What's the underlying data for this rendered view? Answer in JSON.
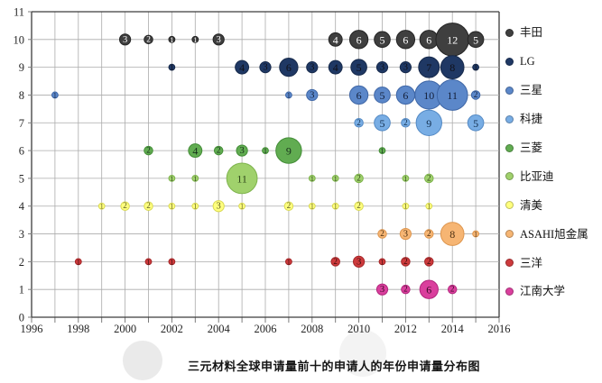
{
  "chart_data": {
    "type": "bubble",
    "title": "三元材料全球申请量前十的申请人的年份申请量分布图",
    "legend_position": "right",
    "grid": {
      "line_color": "#ababab",
      "border_color": "#3c3c3c"
    },
    "x_axis": {
      "min": 1996,
      "max": 2016,
      "grid_step": 1,
      "label_step": 2,
      "tick_labels": [
        "1996",
        "1998",
        "2000",
        "2002",
        "2004",
        "2006",
        "2008",
        "2010",
        "2012",
        "2014",
        "2016"
      ]
    },
    "y_axis": {
      "min": 0,
      "max": 11,
      "tick_labels": [
        "0",
        "1",
        "2",
        "3",
        "4",
        "5",
        "6",
        "7",
        "8",
        "9",
        "10",
        "11"
      ]
    },
    "series": [
      {
        "name": "丰田",
        "row": 10,
        "color": "#3f3f3f",
        "stroke": "#242424",
        "text_color": "#ffffff",
        "points": [
          [
            2000,
            3
          ],
          [
            2001,
            2
          ],
          [
            2002,
            1
          ],
          [
            2003,
            1
          ],
          [
            2004,
            3
          ],
          [
            2009,
            4
          ],
          [
            2010,
            6
          ],
          [
            2011,
            5
          ],
          [
            2012,
            6
          ],
          [
            2013,
            6
          ],
          [
            2014,
            12
          ],
          [
            2015,
            5
          ]
        ]
      },
      {
        "name": "LG",
        "row": 9,
        "color": "#1f3864",
        "stroke": "#16294a",
        "text_color": "#101018",
        "points": [
          [
            2002,
            1
          ],
          [
            2005,
            4
          ],
          [
            2006,
            3
          ],
          [
            2007,
            6
          ],
          [
            2008,
            3
          ],
          [
            2009,
            4
          ],
          [
            2010,
            5
          ],
          [
            2011,
            3
          ],
          [
            2012,
            3
          ],
          [
            2013,
            7
          ],
          [
            2014,
            8
          ],
          [
            2015,
            1
          ]
        ]
      },
      {
        "name": "三星",
        "row": 8,
        "color": "#5b87c9",
        "stroke": "#3e66a6",
        "text_color": "#14203a",
        "points": [
          [
            1997,
            1
          ],
          [
            2007,
            1
          ],
          [
            2008,
            3
          ],
          [
            2010,
            6
          ],
          [
            2011,
            5
          ],
          [
            2012,
            6
          ],
          [
            2013,
            10
          ],
          [
            2014,
            11
          ],
          [
            2015,
            2
          ]
        ]
      },
      {
        "name": "科捷",
        "row": 7,
        "color": "#78ade4",
        "stroke": "#5389c4",
        "text_color": "#14304f",
        "points": [
          [
            2010,
            2
          ],
          [
            2011,
            5
          ],
          [
            2012,
            2
          ],
          [
            2013,
            9
          ],
          [
            2015,
            5
          ]
        ]
      },
      {
        "name": "三菱",
        "row": 6,
        "color": "#61ac51",
        "stroke": "#428c36",
        "text_color": "#17301a",
        "points": [
          [
            2001,
            2
          ],
          [
            2003,
            4
          ],
          [
            2004,
            2
          ],
          [
            2005,
            3
          ],
          [
            2006,
            1
          ],
          [
            2007,
            9
          ],
          [
            2011,
            1
          ]
        ]
      },
      {
        "name": "比亚迪",
        "row": 5,
        "color": "#a0d16c",
        "stroke": "#7eb34d",
        "text_color": "#2e4519",
        "points": [
          [
            2002,
            1
          ],
          [
            2003,
            1
          ],
          [
            2005,
            11
          ],
          [
            2008,
            1
          ],
          [
            2009,
            1
          ],
          [
            2010,
            2
          ],
          [
            2012,
            1
          ],
          [
            2013,
            2
          ]
        ]
      },
      {
        "name": "清美",
        "row": 4,
        "color": "#ffff7d",
        "stroke": "#d9d955",
        "text_color": "#5c5c24",
        "points": [
          [
            1999,
            1
          ],
          [
            2000,
            2
          ],
          [
            2001,
            2
          ],
          [
            2002,
            1
          ],
          [
            2003,
            1
          ],
          [
            2004,
            3
          ],
          [
            2005,
            1
          ],
          [
            2007,
            2
          ],
          [
            2008,
            1
          ],
          [
            2009,
            1
          ],
          [
            2010,
            2
          ],
          [
            2012,
            1
          ],
          [
            2013,
            1
          ]
        ]
      },
      {
        "name": "ASAHI旭金属",
        "row": 3,
        "color": "#f6b573",
        "stroke": "#dd954d",
        "text_color": "#4a2e10",
        "points": [
          [
            2011,
            2
          ],
          [
            2012,
            3
          ],
          [
            2013,
            2
          ],
          [
            2014,
            8
          ],
          [
            2015,
            1
          ]
        ]
      },
      {
        "name": "三洋",
        "row": 2,
        "color": "#cd3a3c",
        "stroke": "#a32628",
        "text_color": "#3a0d0d",
        "points": [
          [
            1998,
            1
          ],
          [
            2001,
            1
          ],
          [
            2002,
            1
          ],
          [
            2007,
            1
          ],
          [
            2009,
            2
          ],
          [
            2010,
            3
          ],
          [
            2011,
            1
          ],
          [
            2012,
            2
          ],
          [
            2013,
            2
          ]
        ]
      },
      {
        "name": "江南大学",
        "row": 1,
        "color": "#da3f9d",
        "stroke": "#b1267c",
        "text_color": "#3c0b29",
        "points": [
          [
            2011,
            3
          ],
          [
            2012,
            2
          ],
          [
            2013,
            6
          ],
          [
            2014,
            2
          ]
        ]
      }
    ]
  }
}
